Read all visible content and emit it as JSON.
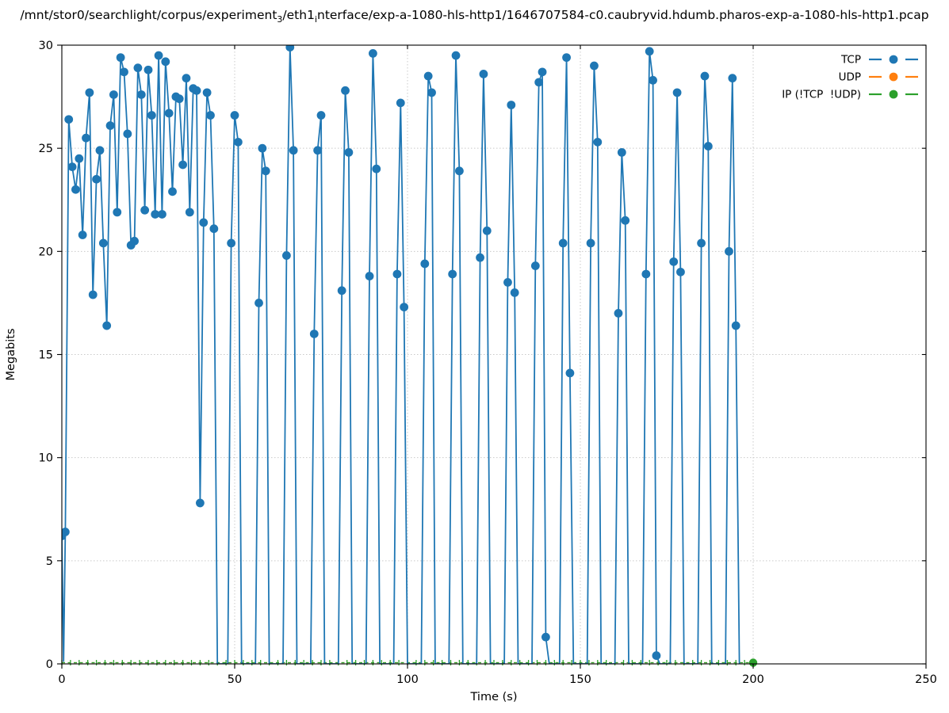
{
  "figure": {
    "title_runs": [
      {
        "text": "/mnt/stor0/searchlight/corpus/experiment",
        "sub": false
      },
      {
        "text": "3",
        "sub": true
      },
      {
        "text": "/eth1",
        "sub": false
      },
      {
        "text": "i",
        "sub": true
      },
      {
        "text": "nterface/exp-a-1080-hls-http1/1646707584-c0.caubryvid.hdumb.pharos-exp-a-1080-hls-http1.pcap",
        "sub": false
      }
    ]
  },
  "chart_data": {
    "type": "line",
    "xlabel": "Time (s)",
    "ylabel": "Megabits",
    "xlim": [
      0,
      250
    ],
    "ylim": [
      0,
      30
    ],
    "xticks": [
      0,
      50,
      100,
      150,
      200,
      250
    ],
    "yticks": [
      0,
      5,
      10,
      15,
      20,
      25,
      30
    ],
    "grid": "dotted, both axes, major ticks",
    "legend_position": "upper right, no frame, marker right of label",
    "legend": [
      {
        "label": "TCP",
        "color": "#1f77b4"
      },
      {
        "label": "UDP",
        "color": "#ff7f0e"
      },
      {
        "label": "IP (!TCP  !UDP)",
        "color": "#2ca02c"
      }
    ],
    "series": [
      {
        "name": "TCP",
        "color": "#1f77b4",
        "style": "line with filled circle markers",
        "points": [
          [
            0,
            6.2
          ],
          [
            0.5,
            0.1
          ],
          [
            1,
            6.4
          ],
          [
            2,
            26.4
          ],
          [
            3,
            24.1
          ],
          [
            4,
            23.0
          ],
          [
            5,
            24.5
          ],
          [
            6,
            20.8
          ],
          [
            7,
            25.5
          ],
          [
            8,
            27.7
          ],
          [
            9,
            17.9
          ],
          [
            10,
            23.5
          ],
          [
            11,
            24.9
          ],
          [
            12,
            20.4
          ],
          [
            13,
            16.4
          ],
          [
            14,
            26.1
          ],
          [
            15,
            27.6
          ],
          [
            16,
            21.9
          ],
          [
            17,
            29.4
          ],
          [
            18,
            28.7
          ],
          [
            19,
            25.7
          ],
          [
            20,
            20.3
          ],
          [
            21,
            20.5
          ],
          [
            22,
            28.9
          ],
          [
            23,
            27.6
          ],
          [
            24,
            22.0
          ],
          [
            25,
            28.8
          ],
          [
            26,
            26.6
          ],
          [
            27,
            21.8
          ],
          [
            28,
            29.5
          ],
          [
            29,
            21.8
          ],
          [
            30,
            29.2
          ],
          [
            31,
            26.7
          ],
          [
            32,
            22.9
          ],
          [
            33,
            27.5
          ],
          [
            34,
            27.4
          ],
          [
            35,
            24.2
          ],
          [
            36,
            28.4
          ],
          [
            37,
            21.9
          ],
          [
            38,
            27.9
          ],
          [
            39,
            27.8
          ],
          [
            40,
            7.8
          ],
          [
            41,
            21.4
          ],
          [
            42,
            27.7
          ],
          [
            43,
            26.6
          ],
          [
            44,
            21.1
          ],
          [
            45,
            0
          ],
          [
            46,
            0
          ],
          [
            47,
            0
          ],
          [
            48,
            0
          ],
          [
            49,
            20.4
          ],
          [
            50,
            26.6
          ],
          [
            51,
            25.3
          ],
          [
            52,
            0
          ],
          [
            53,
            0
          ],
          [
            54,
            0
          ],
          [
            55,
            0
          ],
          [
            56,
            0
          ],
          [
            57,
            17.5
          ],
          [
            58,
            25.0
          ],
          [
            59,
            23.9
          ],
          [
            60,
            0
          ],
          [
            61,
            0
          ],
          [
            62,
            0
          ],
          [
            63,
            0
          ],
          [
            64,
            0
          ],
          [
            65,
            19.8
          ],
          [
            66,
            29.9
          ],
          [
            67,
            24.9
          ],
          [
            68,
            0
          ],
          [
            69,
            0
          ],
          [
            70,
            0
          ],
          [
            71,
            0
          ],
          [
            72,
            0
          ],
          [
            73,
            16.0
          ],
          [
            74,
            24.9
          ],
          [
            75,
            26.6
          ],
          [
            76,
            0
          ],
          [
            77,
            0
          ],
          [
            78,
            0
          ],
          [
            79,
            0
          ],
          [
            80,
            0
          ],
          [
            81,
            18.1
          ],
          [
            82,
            27.8
          ],
          [
            83,
            24.8
          ],
          [
            84,
            0
          ],
          [
            85,
            0
          ],
          [
            86,
            0
          ],
          [
            87,
            0
          ],
          [
            88,
            0
          ],
          [
            89,
            18.8
          ],
          [
            90,
            29.6
          ],
          [
            91,
            24.0
          ],
          [
            92,
            0
          ],
          [
            93,
            0
          ],
          [
            94,
            0
          ],
          [
            95,
            0
          ],
          [
            96,
            0
          ],
          [
            97,
            18.9
          ],
          [
            98,
            27.2
          ],
          [
            99,
            17.3
          ],
          [
            100,
            0
          ],
          [
            101,
            0
          ],
          [
            102,
            0
          ],
          [
            103,
            0
          ],
          [
            104,
            0
          ],
          [
            105,
            19.4
          ],
          [
            106,
            28.5
          ],
          [
            107,
            27.7
          ],
          [
            108,
            0
          ],
          [
            109,
            0
          ],
          [
            110,
            0
          ],
          [
            111,
            0
          ],
          [
            112,
            0
          ],
          [
            113,
            18.9
          ],
          [
            114,
            29.5
          ],
          [
            115,
            23.9
          ],
          [
            116,
            0
          ],
          [
            117,
            0
          ],
          [
            118,
            0
          ],
          [
            119,
            0
          ],
          [
            120,
            0
          ],
          [
            121,
            19.7
          ],
          [
            122,
            28.6
          ],
          [
            123,
            21.0
          ],
          [
            124,
            0
          ],
          [
            125,
            0
          ],
          [
            126,
            0
          ],
          [
            127,
            0
          ],
          [
            128,
            0
          ],
          [
            129,
            18.5
          ],
          [
            130,
            27.1
          ],
          [
            131,
            18.0
          ],
          [
            132,
            0
          ],
          [
            133,
            0
          ],
          [
            134,
            0
          ],
          [
            135,
            0
          ],
          [
            136,
            0
          ],
          [
            137,
            19.3
          ],
          [
            138,
            28.2
          ],
          [
            139,
            28.7
          ],
          [
            140,
            1.3
          ],
          [
            141,
            0
          ],
          [
            142,
            0
          ],
          [
            143,
            0
          ],
          [
            144,
            0
          ],
          [
            145,
            20.4
          ],
          [
            146,
            29.4
          ],
          [
            147,
            14.1
          ],
          [
            148,
            0
          ],
          [
            149,
            0
          ],
          [
            150,
            0
          ],
          [
            151,
            0
          ],
          [
            152,
            0
          ],
          [
            153,
            20.4
          ],
          [
            154,
            29.0
          ],
          [
            155,
            25.3
          ],
          [
            156,
            0
          ],
          [
            157,
            0
          ],
          [
            158,
            0
          ],
          [
            159,
            0
          ],
          [
            160,
            0
          ],
          [
            161,
            17.0
          ],
          [
            162,
            24.8
          ],
          [
            163,
            21.5
          ],
          [
            164,
            0
          ],
          [
            165,
            0
          ],
          [
            166,
            0
          ],
          [
            167,
            0
          ],
          [
            168,
            0
          ],
          [
            169,
            18.9
          ],
          [
            170,
            29.7
          ],
          [
            171,
            28.3
          ],
          [
            172,
            0.4
          ],
          [
            173,
            0
          ],
          [
            174,
            0
          ],
          [
            175,
            0
          ],
          [
            176,
            0
          ],
          [
            177,
            19.5
          ],
          [
            178,
            27.7
          ],
          [
            179,
            19.0
          ],
          [
            180,
            0
          ],
          [
            181,
            0
          ],
          [
            182,
            0
          ],
          [
            183,
            0
          ],
          [
            184,
            0
          ],
          [
            185,
            20.4
          ],
          [
            186,
            28.5
          ],
          [
            187,
            25.1
          ],
          [
            188,
            0
          ],
          [
            189,
            0
          ],
          [
            190,
            0
          ],
          [
            191,
            0
          ],
          [
            192,
            0
          ],
          [
            193,
            20.0
          ],
          [
            194,
            28.4
          ],
          [
            195,
            16.4
          ],
          [
            196,
            0
          ]
        ]
      },
      {
        "name": "UDP",
        "color": "#ff7f0e",
        "style": "dashed line at ~0, hidden beneath IP series",
        "constant_value": 0,
        "x_start": 0,
        "x_end": 200
      },
      {
        "name": "IP (!TCP  !UDP)",
        "color": "#2ca02c",
        "style": "dashed line at ~0 with small vertical tick markers, round marker at end",
        "constant_value": 0,
        "x_start": 0,
        "x_end": 200,
        "marker_step": 2.5,
        "endpoint_marker": [
          200,
          0
        ]
      }
    ]
  }
}
